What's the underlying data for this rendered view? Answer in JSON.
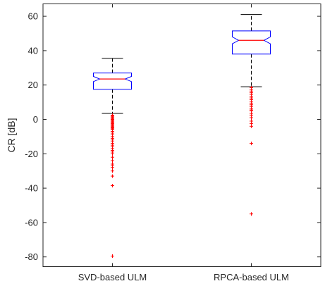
{
  "chart_data": {
    "type": "box",
    "title": "",
    "xlabel": "",
    "ylabel": "CR [dB]",
    "ylim": [
      -85,
      68
    ],
    "yticks": [
      60,
      40,
      20,
      0,
      -20,
      -40,
      -60,
      -80
    ],
    "ytick_labels": [
      "60",
      "40",
      "20",
      "0",
      "-20",
      "-40",
      "-60",
      "-80"
    ],
    "notched": true,
    "grid": false,
    "colors": {
      "box": "#0000ff",
      "median": "#ff0000",
      "whisker": "#000000",
      "outlier": "#ff0000",
      "axis": "#262626"
    },
    "categories": [
      "SVD-based ULM",
      "RPCA-based ULM"
    ],
    "series": [
      {
        "category": "SVD-based ULM",
        "whisker_low": 3.5,
        "q1": 17.5,
        "median": 23.5,
        "q3": 27,
        "whisker_high": 35.5,
        "notch_low": 22,
        "notch_high": 25,
        "outliers": [
          2.5,
          2,
          1.5,
          1,
          0.5,
          0,
          -0.5,
          -1,
          -1.5,
          -2,
          -2.5,
          -3,
          -3.5,
          -4,
          -4.5,
          -5,
          -5.5,
          -6,
          -7,
          -8,
          -9,
          -10,
          -11,
          -12,
          -13,
          -14,
          -15,
          -16,
          -17,
          -18,
          -19,
          -20,
          -22,
          -24,
          -26,
          -27,
          -28,
          -30,
          -33,
          -38.5,
          -79.5
        ]
      },
      {
        "category": "RPCA-based ULM",
        "whisker_low": 19,
        "q1": 38,
        "median": 46,
        "q3": 51.5,
        "whisker_high": 61,
        "notch_low": 44,
        "notch_high": 48,
        "outliers": [
          18.5,
          17.5,
          16.5,
          15.5,
          14.5,
          13.5,
          12.5,
          11.5,
          10.5,
          9.5,
          8.5,
          7.5,
          6.5,
          5.5,
          5,
          3.5,
          2.5,
          1,
          -1,
          -2.5,
          -4,
          -14,
          -55
        ]
      }
    ]
  }
}
